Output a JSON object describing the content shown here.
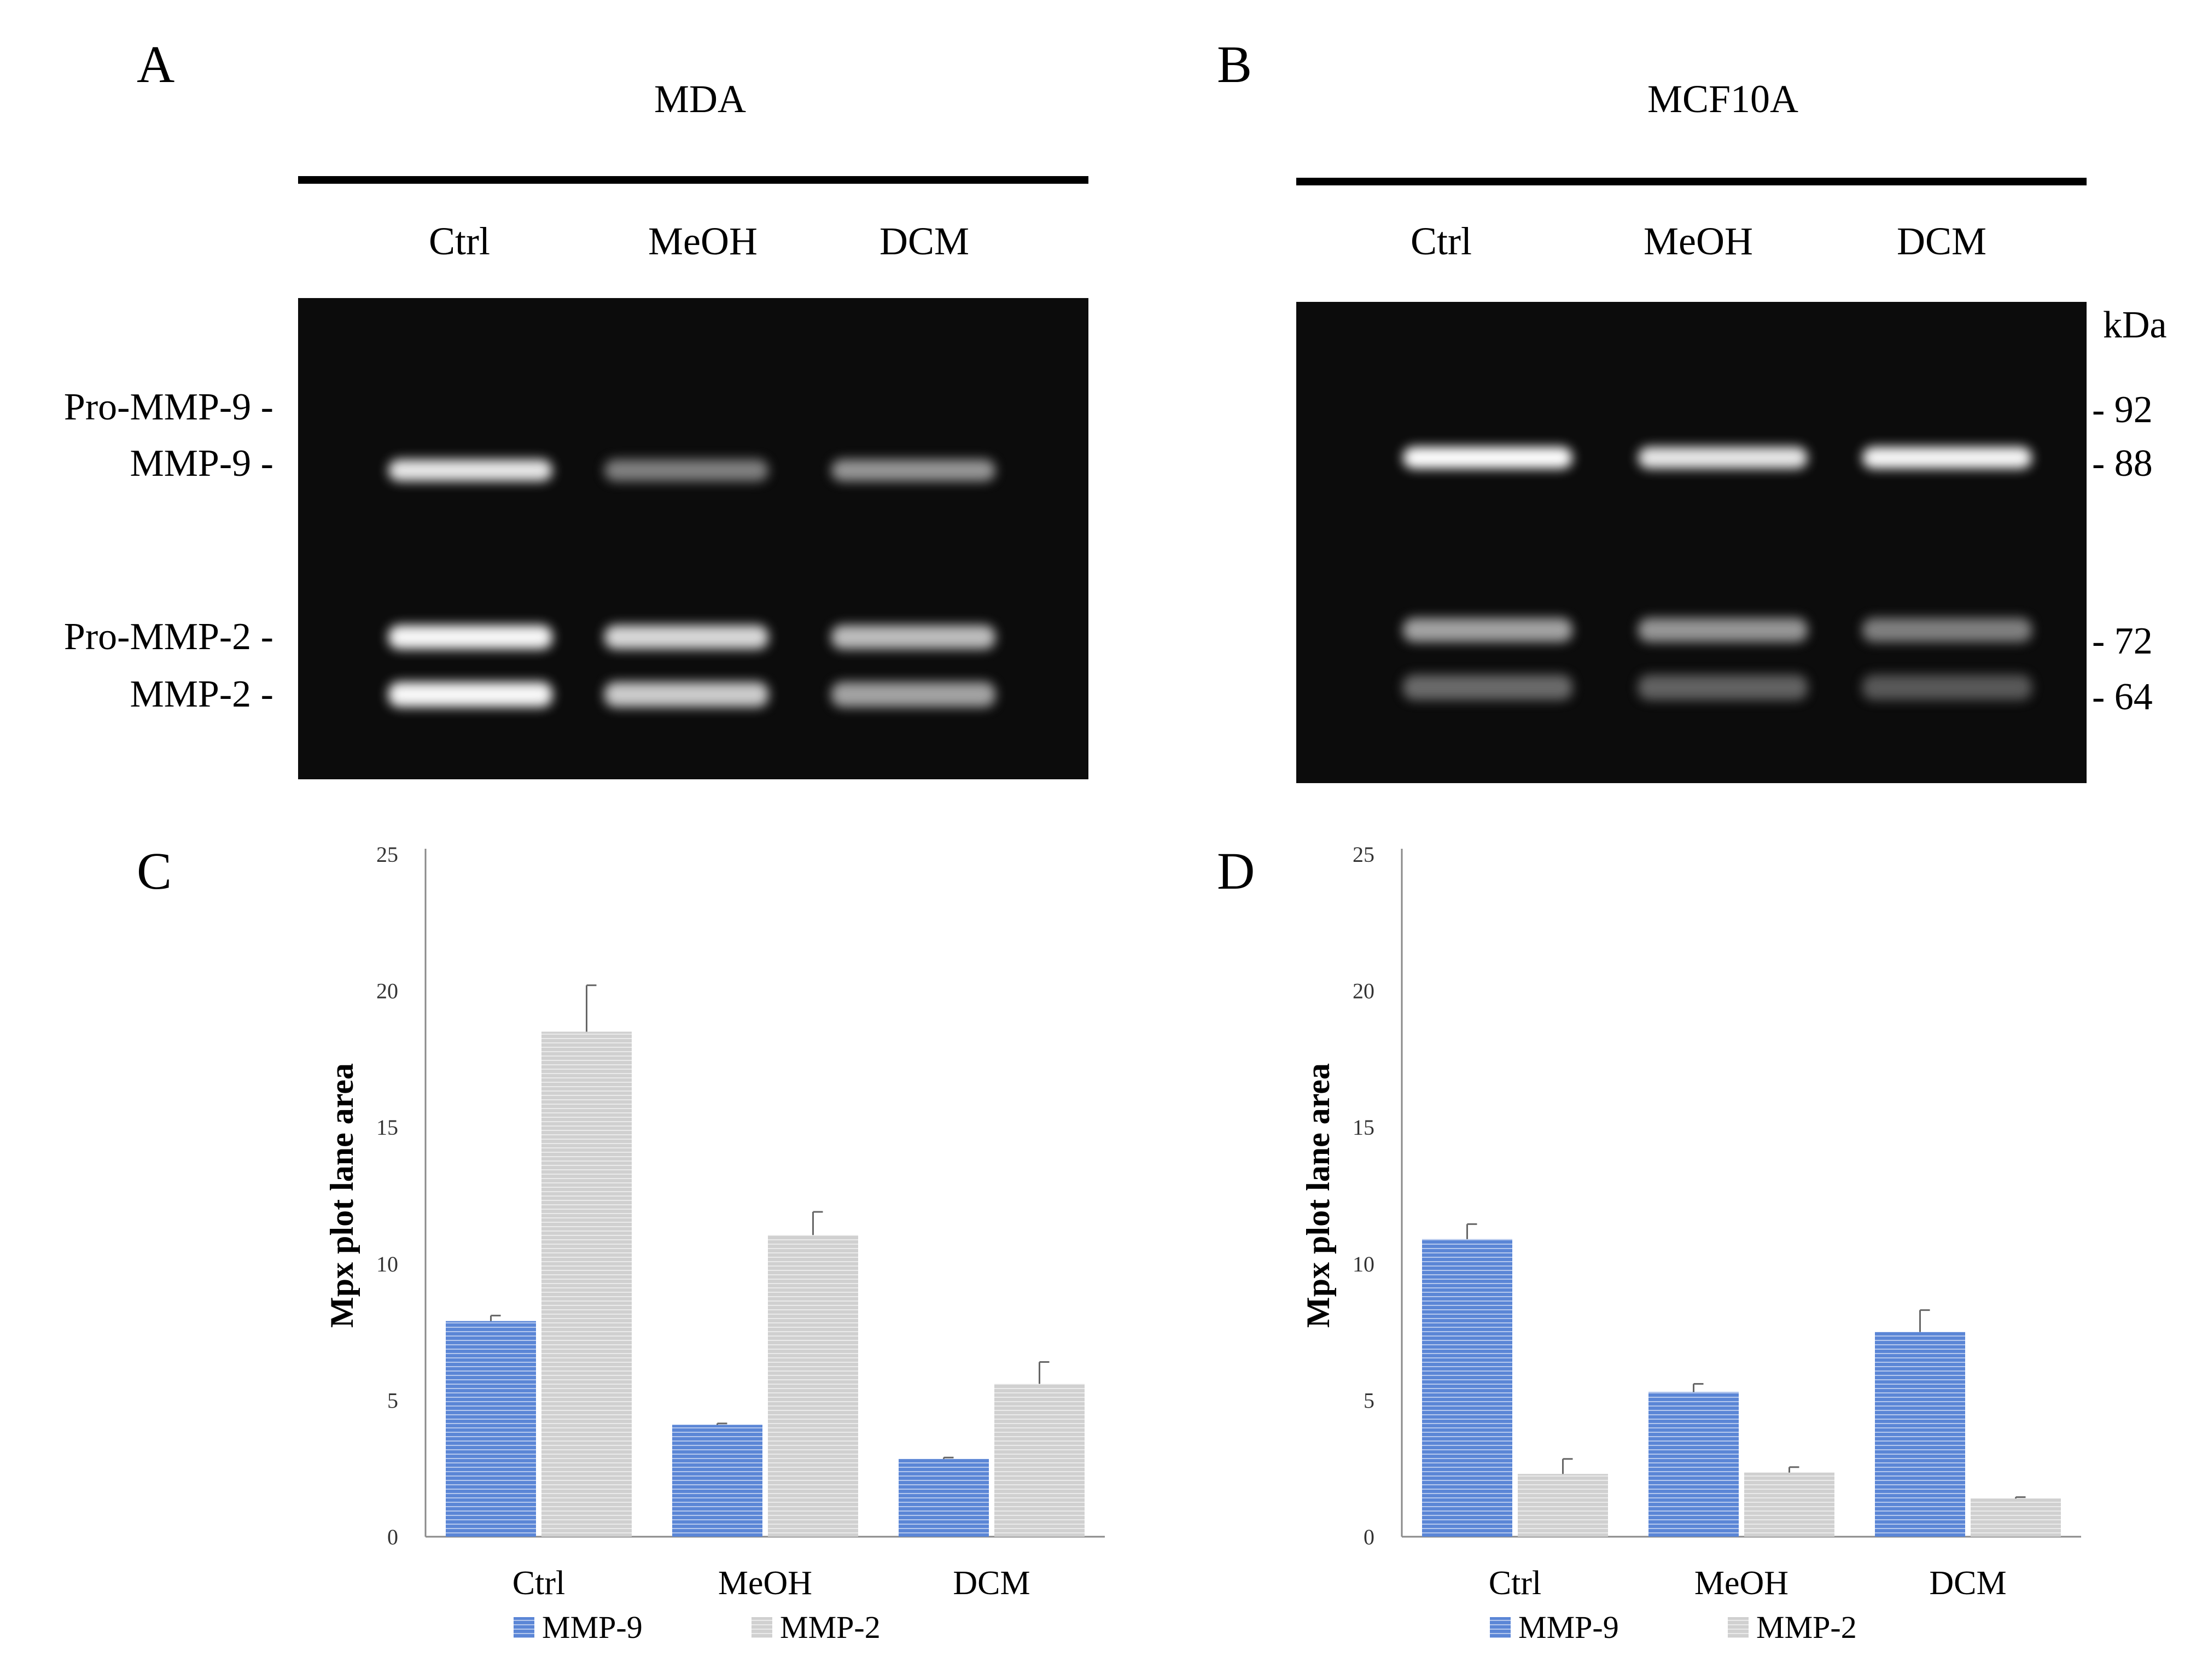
{
  "colors": {
    "mmp9": "#5b86d6",
    "mmp2": "#d0d0d0",
    "gel_bg": "#0c0c0c"
  },
  "panels": {
    "a": {
      "letter": "A",
      "title": "MDA",
      "lanes": [
        "Ctrl",
        "MeOH",
        "DCM"
      ]
    },
    "b": {
      "letter": "B",
      "title": "MCF10A",
      "lanes": [
        "Ctrl",
        "MeOH",
        "DCM"
      ],
      "unit": "kDa",
      "markers": [
        "- 92",
        "- 88",
        "- 72",
        "- 64"
      ]
    },
    "c": {
      "letter": "C"
    },
    "d": {
      "letter": "D"
    }
  },
  "gel_labels": [
    "Pro-MMP-9 -",
    "MMP-9 -",
    "Pro-MMP-2 -",
    "MMP-2 -"
  ],
  "gel_bands": {
    "a": {
      "mmp9": [
        0.85,
        0.45,
        0.55
      ],
      "mmp2_pro": [
        0.95,
        0.8,
        0.7
      ],
      "mmp2": [
        0.95,
        0.75,
        0.6
      ]
    },
    "b": {
      "mmp9": [
        1.0,
        0.85,
        0.95
      ],
      "mmp2_pro": [
        0.6,
        0.55,
        0.45
      ],
      "mmp2": [
        0.35,
        0.3,
        0.25
      ]
    }
  },
  "chart_data": [
    {
      "type": "bar",
      "categories": [
        "Ctrl",
        "MeOH",
        "DCM"
      ],
      "series": [
        {
          "name": "MMP-9",
          "values": [
            7.9,
            4.1,
            2.85
          ],
          "errors": [
            0.2,
            0.05,
            0.05
          ]
        },
        {
          "name": "MMP-2",
          "values": [
            18.5,
            11.05,
            5.6
          ],
          "errors": [
            1.7,
            0.85,
            0.8
          ]
        }
      ],
      "ylabel": "Mpx plot lane area",
      "ylim": [
        0,
        25
      ],
      "yticks": [
        "0",
        "5",
        "10",
        "15",
        "20",
        "25"
      ],
      "legend": "bottom",
      "grid": false
    },
    {
      "type": "bar",
      "categories": [
        "Ctrl",
        "MeOH",
        "DCM"
      ],
      "series": [
        {
          "name": "MMP-9",
          "values": [
            10.9,
            5.3,
            7.5
          ],
          "errors": [
            0.55,
            0.3,
            0.8
          ]
        },
        {
          "name": "MMP-2",
          "values": [
            2.3,
            2.35,
            1.4
          ],
          "errors": [
            0.55,
            0.2,
            0.05
          ]
        }
      ],
      "ylabel": "Mpx plot lane area",
      "ylim": [
        0,
        25
      ],
      "yticks": [
        "0",
        "5",
        "10",
        "15",
        "20",
        "25"
      ],
      "legend": "bottom",
      "grid": false
    }
  ]
}
